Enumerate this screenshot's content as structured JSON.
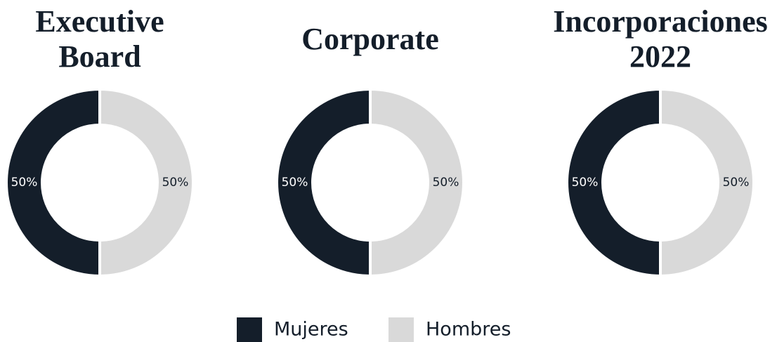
{
  "chart_data": [
    {
      "type": "donut",
      "title": "Executive Board",
      "categories": [
        "Mujeres",
        "Hombres"
      ],
      "values": [
        50,
        50
      ],
      "value_labels": [
        "50%",
        "50%"
      ],
      "colors": [
        "#141e2a",
        "#d9d9d9"
      ]
    },
    {
      "type": "donut",
      "title": "Corporate",
      "categories": [
        "Mujeres",
        "Hombres"
      ],
      "values": [
        50,
        50
      ],
      "value_labels": [
        "50%",
        "50%"
      ],
      "colors": [
        "#141e2a",
        "#d9d9d9"
      ]
    },
    {
      "type": "donut",
      "title": "Incorporaciones 2022",
      "categories": [
        "Mujeres",
        "Hombres"
      ],
      "values": [
        50,
        50
      ],
      "value_labels": [
        "50%",
        "50%"
      ],
      "colors": [
        "#141e2a",
        "#d9d9d9"
      ]
    }
  ]
}
